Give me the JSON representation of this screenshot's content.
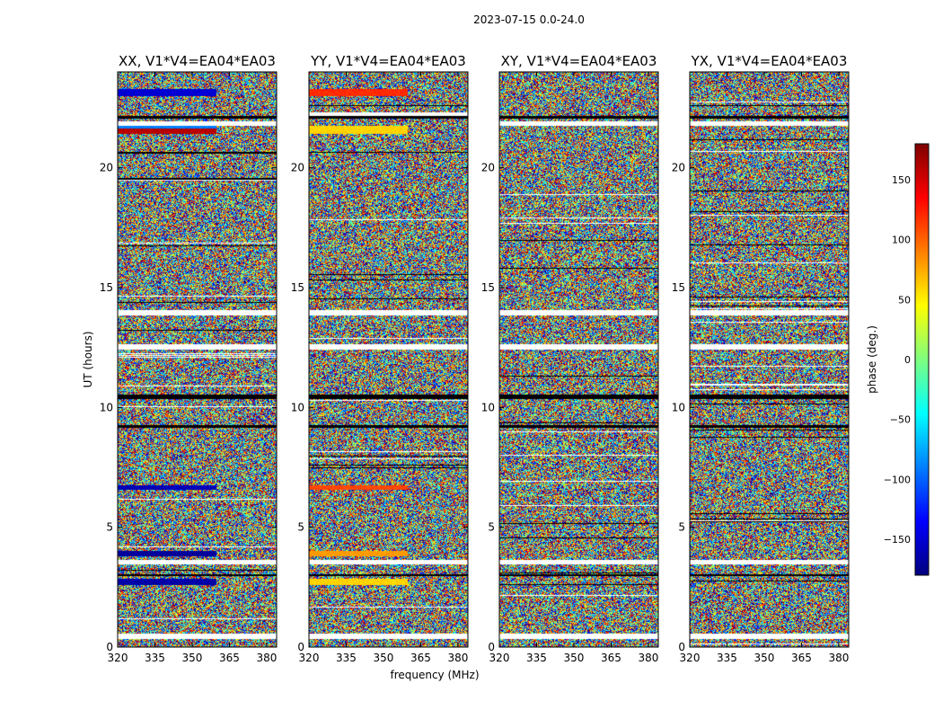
{
  "figure_title": "2023-07-15 0.0-24.0",
  "colors": {
    "axis": "#000000",
    "flag": "#ffffff",
    "dropout": "#000000",
    "colormap_stops": [
      "#00007f",
      "#0000ff",
      "#007fff",
      "#00ffff",
      "#7fff7f",
      "#ffff00",
      "#ff7f00",
      "#ff0000",
      "#7f0000"
    ]
  },
  "chart_data": [
    {
      "type": "heatmap",
      "title": "XX, V1*V4=EA04*EA03",
      "xlabel": "",
      "ylabel": "UT (hours)",
      "x_ticks": [
        "320",
        "335",
        "350",
        "365",
        "380"
      ],
      "y_ticks": [
        "0",
        "5",
        "10",
        "15",
        "20"
      ],
      "xlim": [
        320,
        384
      ],
      "ylim": [
        0,
        24
      ],
      "flagged_bands_ut": [
        [
          0.35,
          0.55
        ],
        [
          3.45,
          3.62
        ],
        [
          12.4,
          12.65
        ],
        [
          13.85,
          14.05
        ],
        [
          21.75,
          21.95
        ]
      ],
      "dropout_bands_ut": [
        [
          2.95,
          3.05
        ],
        [
          9.15,
          9.25
        ],
        [
          10.35,
          10.55
        ],
        [
          22.05,
          22.18
        ]
      ],
      "coherent_bands": [
        {
          "ut": [
            2.6,
            2.85
          ],
          "phase_deg": -165
        },
        {
          "ut": [
            3.8,
            4.0
          ],
          "phase_deg": -170
        },
        {
          "ut": [
            6.55,
            6.75
          ],
          "phase_deg": -160
        },
        {
          "ut": [
            21.4,
            21.62
          ],
          "phase_deg": 160
        },
        {
          "ut": [
            21.62,
            21.75
          ],
          "phase_deg": -90
        },
        {
          "ut": [
            23.0,
            23.3
          ],
          "phase_deg": -150
        }
      ]
    },
    {
      "type": "heatmap",
      "title": "YY, V1*V4=EA04*EA03",
      "xlabel": "frequency (MHz)",
      "ylabel": "",
      "x_ticks": [
        "320",
        "335",
        "350",
        "365",
        "380"
      ],
      "y_ticks": [
        "0",
        "5",
        "10",
        "15",
        "20"
      ],
      "xlim": [
        320,
        384
      ],
      "ylim": [
        0,
        24
      ],
      "flagged_bands_ut": [
        [
          0.35,
          0.55
        ],
        [
          3.45,
          3.62
        ],
        [
          12.4,
          12.65
        ],
        [
          13.85,
          14.05
        ],
        [
          22.15,
          22.3
        ]
      ],
      "dropout_bands_ut": [
        [
          2.95,
          3.05
        ],
        [
          9.15,
          9.25
        ],
        [
          10.35,
          10.55
        ],
        [
          22.05,
          22.15
        ]
      ],
      "coherent_bands": [
        {
          "ut": [
            2.6,
            2.85
          ],
          "phase_deg": 60
        },
        {
          "ut": [
            3.8,
            4.0
          ],
          "phase_deg": 80
        },
        {
          "ut": [
            6.55,
            6.75
          ],
          "phase_deg": 110
        },
        {
          "ut": [
            21.4,
            21.75
          ],
          "phase_deg": 60
        },
        {
          "ut": [
            23.0,
            23.3
          ],
          "phase_deg": 120
        }
      ]
    },
    {
      "type": "heatmap",
      "title": "XY, V1*V4=EA04*EA03",
      "xlabel": "",
      "ylabel": "",
      "x_ticks": [
        "320",
        "335",
        "350",
        "365",
        "380"
      ],
      "y_ticks": [
        "0",
        "5",
        "10",
        "15",
        "20"
      ],
      "xlim": [
        320,
        384
      ],
      "ylim": [
        0,
        24
      ],
      "flagged_bands_ut": [
        [
          0.35,
          0.55
        ],
        [
          3.45,
          3.62
        ],
        [
          12.4,
          12.65
        ],
        [
          13.85,
          14.05
        ],
        [
          21.75,
          21.95
        ]
      ],
      "dropout_bands_ut": [
        [
          2.95,
          3.05
        ],
        [
          9.15,
          9.25
        ],
        [
          10.35,
          10.55
        ],
        [
          22.05,
          22.18
        ]
      ],
      "coherent_bands": []
    },
    {
      "type": "heatmap",
      "title": "YX, V1*V4=EA04*EA03",
      "xlabel": "",
      "ylabel": "",
      "x_ticks": [
        "320",
        "335",
        "350",
        "365",
        "380"
      ],
      "y_ticks": [
        "0",
        "5",
        "10",
        "15",
        "20"
      ],
      "xlim": [
        320,
        384
      ],
      "ylim": [
        0,
        24
      ],
      "flagged_bands_ut": [
        [
          0.35,
          0.55
        ],
        [
          3.45,
          3.62
        ],
        [
          12.4,
          12.65
        ],
        [
          13.85,
          14.05
        ],
        [
          21.75,
          21.95
        ]
      ],
      "dropout_bands_ut": [
        [
          2.95,
          3.05
        ],
        [
          9.15,
          9.25
        ],
        [
          10.35,
          10.55
        ],
        [
          22.05,
          22.18
        ]
      ],
      "coherent_bands": []
    }
  ],
  "colorbar": {
    "label": "phase (deg.)",
    "range": [
      -180,
      180
    ],
    "ticks": [
      "150",
      "100",
      "50",
      "0",
      "−50",
      "−100",
      "−150"
    ],
    "tick_values": [
      150,
      100,
      50,
      0,
      -50,
      -100,
      -150
    ]
  }
}
